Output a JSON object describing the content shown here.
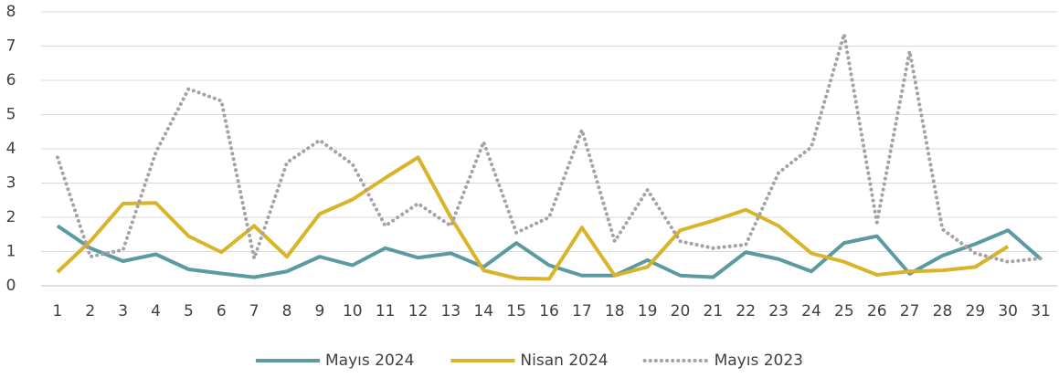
{
  "chart_data": {
    "type": "line",
    "categories": [
      "1",
      "2",
      "3",
      "4",
      "5",
      "6",
      "7",
      "8",
      "9",
      "10",
      "11",
      "12",
      "13",
      "14",
      "15",
      "16",
      "17",
      "18",
      "19",
      "20",
      "21",
      "22",
      "23",
      "24",
      "25",
      "26",
      "27",
      "28",
      "29",
      "30",
      "31"
    ],
    "series": [
      {
        "name": "Mayıs 2024",
        "color": "#5b9aa0",
        "dash": "solid",
        "values": [
          1.75,
          1.1,
          0.72,
          0.92,
          0.48,
          0.36,
          0.25,
          0.42,
          0.85,
          0.6,
          1.1,
          0.82,
          0.95,
          0.55,
          1.25,
          0.6,
          0.3,
          0.3,
          0.75,
          0.3,
          0.25,
          0.98,
          0.78,
          0.42,
          1.25,
          1.45,
          0.35,
          0.88,
          1.22,
          1.62,
          0.78
        ]
      },
      {
        "name": "Nisan 2024",
        "color": "#d9b42a",
        "dash": "solid",
        "values": [
          0.4,
          1.3,
          2.4,
          2.42,
          1.45,
          0.98,
          1.75,
          0.85,
          2.1,
          2.52,
          3.15,
          3.75,
          2.0,
          0.45,
          0.22,
          0.2,
          1.7,
          0.3,
          0.55,
          1.62,
          1.9,
          2.22,
          1.75,
          0.95,
          0.7,
          0.32,
          0.42,
          0.45,
          0.55,
          1.15,
          null
        ]
      },
      {
        "name": "Mayıs 2023",
        "color": "#a5a2a5",
        "dash": "dotted",
        "values": [
          3.75,
          0.85,
          1.05,
          3.9,
          5.75,
          5.4,
          0.8,
          3.6,
          4.25,
          3.55,
          1.75,
          2.4,
          1.75,
          4.2,
          1.55,
          2.0,
          4.55,
          1.3,
          2.8,
          1.3,
          1.1,
          1.2,
          3.3,
          4.05,
          7.35,
          1.85,
          6.85,
          1.65,
          0.95,
          0.7,
          0.8
        ]
      }
    ],
    "ylim": [
      0,
      8
    ],
    "yticks": [
      0,
      1,
      2,
      3,
      4,
      5,
      6,
      7,
      8
    ],
    "grid": true,
    "legend": "bottom"
  }
}
